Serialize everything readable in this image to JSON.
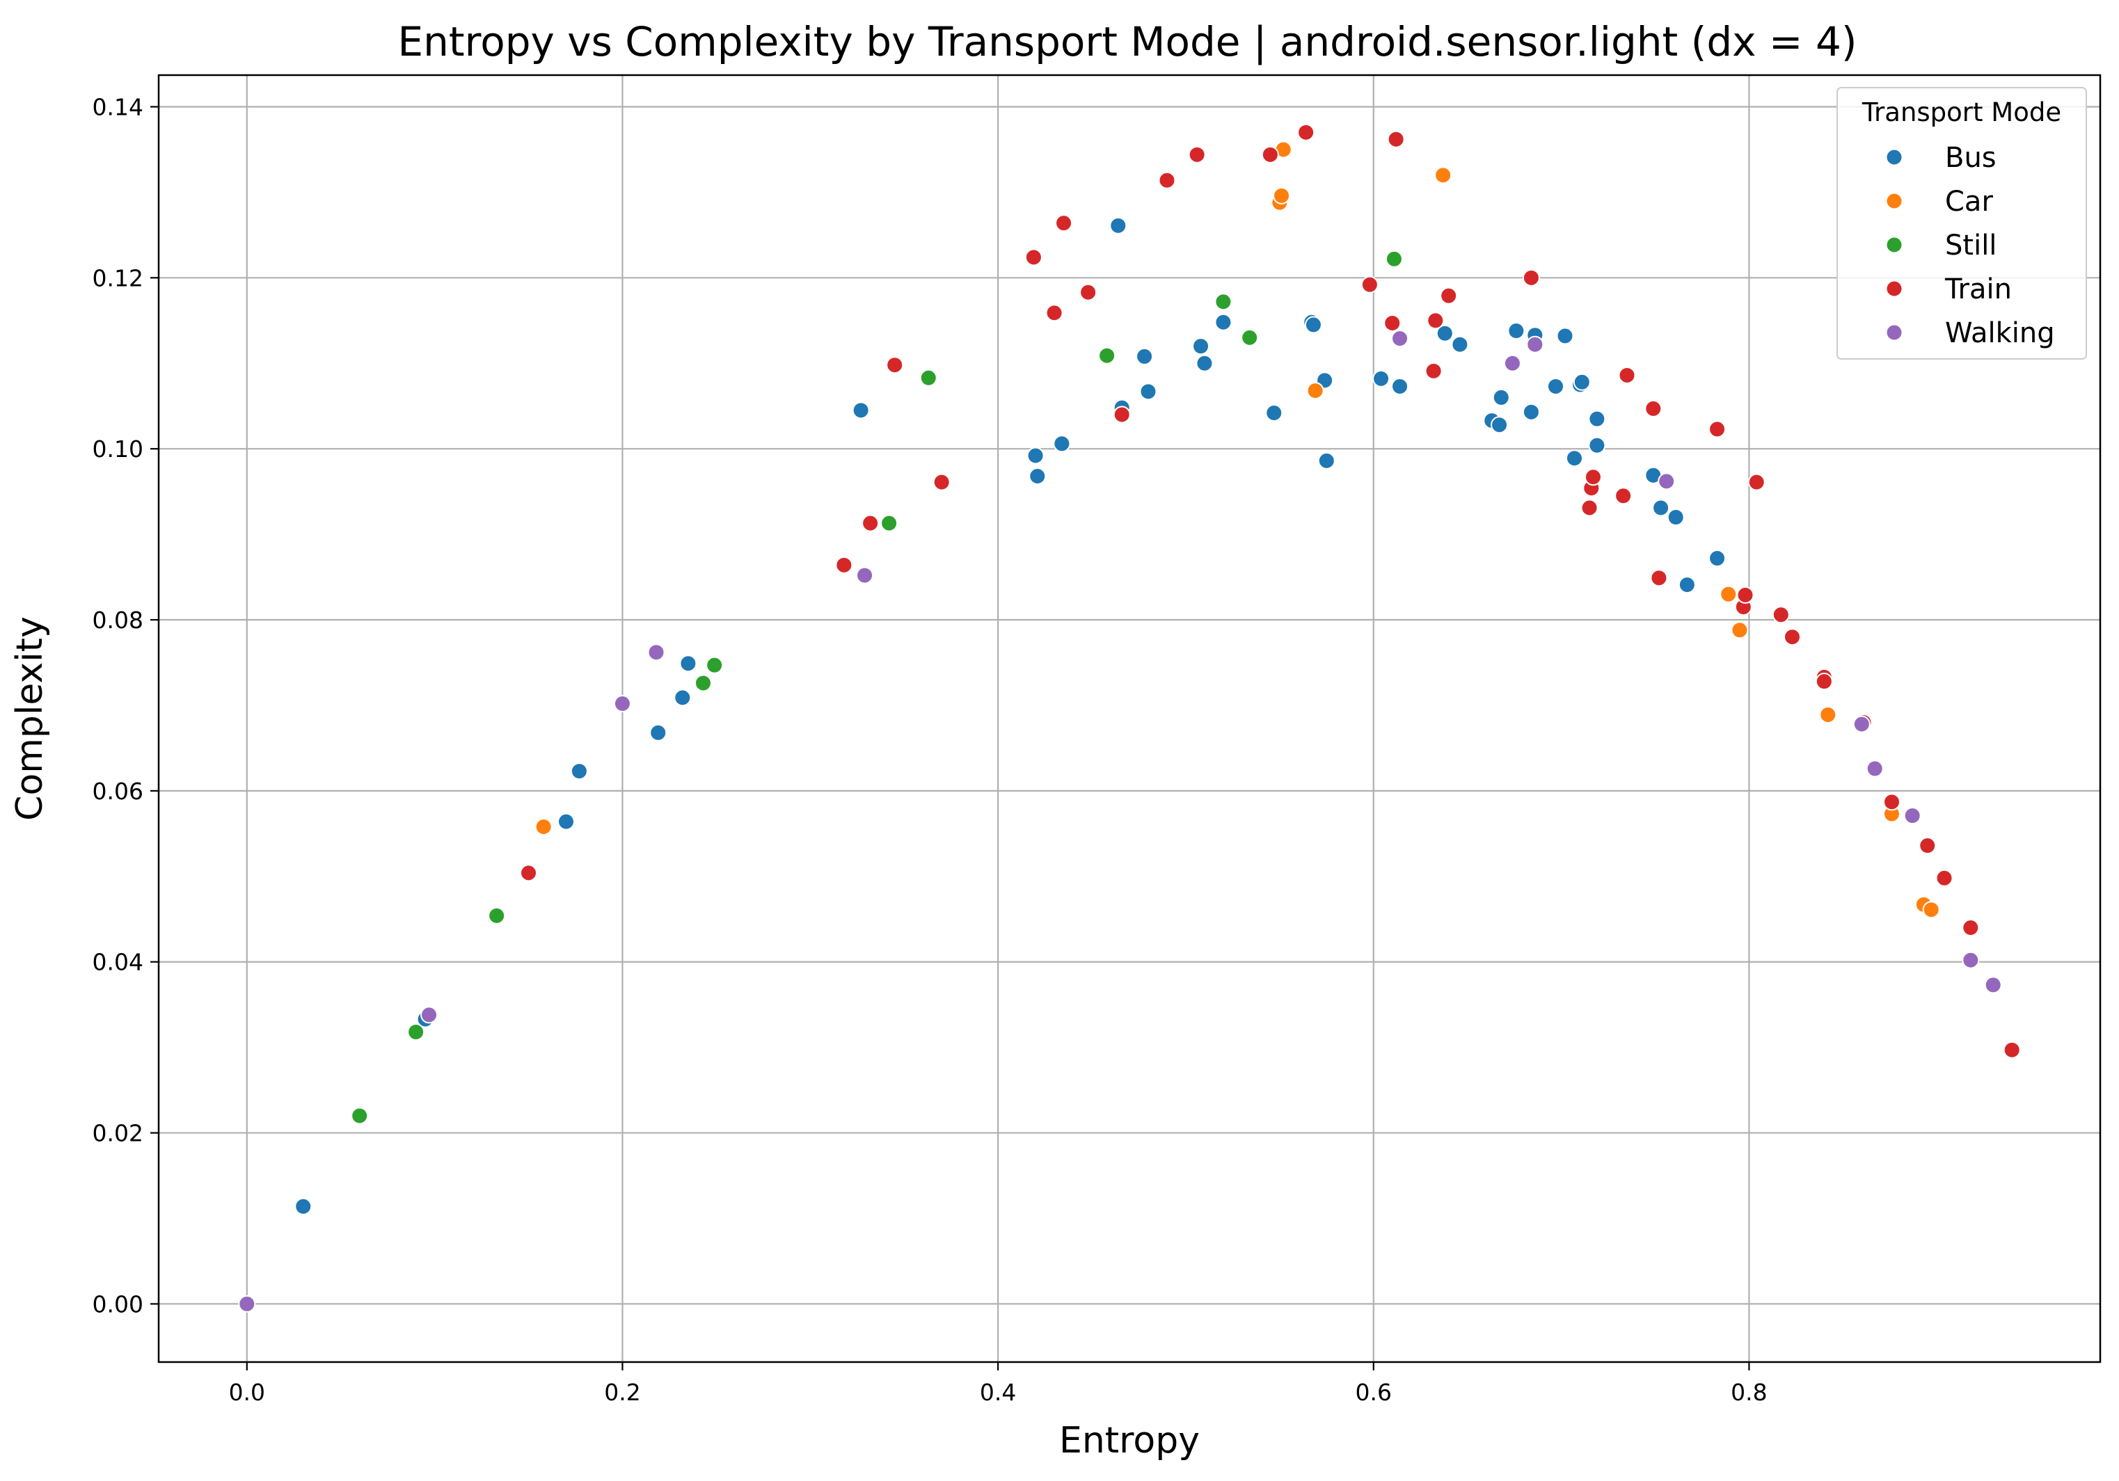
{
  "chart_data": {
    "type": "scatter",
    "title": "Entropy vs Complexity by Transport Mode | android.sensor.light (dx = 4)",
    "xlabel": "Entropy",
    "ylabel": "Complexity",
    "xlim": [
      -0.047,
      0.987
    ],
    "ylim": [
      -0.0068,
      0.1437
    ],
    "xticks": [
      "0.0",
      "0.2",
      "0.4",
      "0.6",
      "0.8"
    ],
    "xtick_values": [
      0.0,
      0.2,
      0.4,
      0.6,
      0.8
    ],
    "yticks": [
      "0.00",
      "0.02",
      "0.04",
      "0.06",
      "0.08",
      "0.10",
      "0.12",
      "0.14"
    ],
    "ytick_values": [
      0.0,
      0.02,
      0.04,
      0.06,
      0.08,
      0.1,
      0.12,
      0.14
    ],
    "grid": true,
    "legend": {
      "title": "Transport Mode",
      "placement": "top-right"
    },
    "series": [
      {
        "name": "Bus",
        "color": "#1f77b4",
        "points": [
          [
            0.03,
            0.0114
          ],
          [
            0.095,
            0.0333
          ],
          [
            0.17,
            0.0564
          ],
          [
            0.177,
            0.0623
          ],
          [
            0.219,
            0.0668
          ],
          [
            0.232,
            0.0709
          ],
          [
            0.235,
            0.0749
          ],
          [
            0.327,
            0.1045
          ],
          [
            0.42,
            0.0992
          ],
          [
            0.421,
            0.0968
          ],
          [
            0.434,
            0.1006
          ],
          [
            0.464,
            0.1261
          ],
          [
            0.466,
            0.1048
          ],
          [
            0.478,
            0.1108
          ],
          [
            0.48,
            0.1067
          ],
          [
            0.508,
            0.112
          ],
          [
            0.51,
            0.11
          ],
          [
            0.52,
            0.1148
          ],
          [
            0.547,
            0.1042
          ],
          [
            0.567,
            0.1148
          ],
          [
            0.568,
            0.1145
          ],
          [
            0.574,
            0.108
          ],
          [
            0.575,
            0.0986
          ],
          [
            0.604,
            0.1082
          ],
          [
            0.614,
            0.1073
          ],
          [
            0.638,
            0.1135
          ],
          [
            0.646,
            0.1122
          ],
          [
            0.663,
            0.1033
          ],
          [
            0.667,
            0.1028
          ],
          [
            0.668,
            0.106
          ],
          [
            0.676,
            0.1138
          ],
          [
            0.684,
            0.1043
          ],
          [
            0.686,
            0.1133
          ],
          [
            0.697,
            0.1073
          ],
          [
            0.702,
            0.1132
          ],
          [
            0.707,
            0.0989
          ],
          [
            0.71,
            0.1075
          ],
          [
            0.711,
            0.1078
          ],
          [
            0.719,
            0.1035
          ],
          [
            0.719,
            0.1004
          ],
          [
            0.749,
            0.0969
          ],
          [
            0.753,
            0.0931
          ],
          [
            0.761,
            0.092
          ],
          [
            0.767,
            0.0841
          ],
          [
            0.783,
            0.0872
          ]
        ]
      },
      {
        "name": "Car",
        "color": "#ff7f0e",
        "points": [
          [
            0.158,
            0.0558
          ],
          [
            0.55,
            0.1288
          ],
          [
            0.551,
            0.1296
          ],
          [
            0.552,
            0.135
          ],
          [
            0.569,
            0.1068
          ],
          [
            0.637,
            0.132
          ],
          [
            0.789,
            0.083
          ],
          [
            0.795,
            0.0788
          ],
          [
            0.842,
            0.0689
          ],
          [
            0.876,
            0.0573
          ],
          [
            0.893,
            0.0467
          ],
          [
            0.897,
            0.0461
          ]
        ]
      },
      {
        "name": "Still",
        "color": "#2ca02c",
        "points": [
          [
            0.06,
            0.022
          ],
          [
            0.09,
            0.0318
          ],
          [
            0.133,
            0.0454
          ],
          [
            0.243,
            0.0726
          ],
          [
            0.249,
            0.0747
          ],
          [
            0.342,
            0.0913
          ],
          [
            0.363,
            0.1083
          ],
          [
            0.458,
            0.1109
          ],
          [
            0.52,
            0.1172
          ],
          [
            0.534,
            0.113
          ],
          [
            0.611,
            0.1222
          ]
        ]
      },
      {
        "name": "Train",
        "color": "#d62728",
        "points": [
          [
            0.15,
            0.0504
          ],
          [
            0.318,
            0.0864
          ],
          [
            0.332,
            0.0913
          ],
          [
            0.345,
            0.1098
          ],
          [
            0.37,
            0.0961
          ],
          [
            0.419,
            0.1224
          ],
          [
            0.43,
            0.1159
          ],
          [
            0.435,
            0.1264
          ],
          [
            0.448,
            0.1183
          ],
          [
            0.466,
            0.104
          ],
          [
            0.49,
            0.1314
          ],
          [
            0.506,
            0.1344
          ],
          [
            0.545,
            0.1344
          ],
          [
            0.564,
            0.137
          ],
          [
            0.598,
            0.1192
          ],
          [
            0.61,
            0.1147
          ],
          [
            0.612,
            0.1362
          ],
          [
            0.632,
            0.1091
          ],
          [
            0.633,
            0.115
          ],
          [
            0.64,
            0.1179
          ],
          [
            0.684,
            0.12
          ],
          [
            0.715,
            0.0931
          ],
          [
            0.716,
            0.0954
          ],
          [
            0.717,
            0.0967
          ],
          [
            0.733,
            0.0945
          ],
          [
            0.735,
            0.1086
          ],
          [
            0.749,
            0.1047
          ],
          [
            0.752,
            0.0849
          ],
          [
            0.783,
            0.1023
          ],
          [
            0.797,
            0.0815
          ],
          [
            0.798,
            0.0829
          ],
          [
            0.804,
            0.0961
          ],
          [
            0.817,
            0.0806
          ],
          [
            0.823,
            0.078
          ],
          [
            0.84,
            0.0733
          ],
          [
            0.84,
            0.0728
          ],
          [
            0.861,
            0.068
          ],
          [
            0.876,
            0.0587
          ],
          [
            0.895,
            0.0536
          ],
          [
            0.904,
            0.0498
          ],
          [
            0.918,
            0.044
          ],
          [
            0.94,
            0.0297
          ]
        ]
      },
      {
        "name": "Walking",
        "color": "#9467bd",
        "points": [
          [
            0.0,
            0.0
          ],
          [
            0.097,
            0.0338
          ],
          [
            0.2,
            0.0702
          ],
          [
            0.218,
            0.0762
          ],
          [
            0.329,
            0.0852
          ],
          [
            0.614,
            0.1129
          ],
          [
            0.674,
            0.11
          ],
          [
            0.686,
            0.1122
          ],
          [
            0.756,
            0.0962
          ],
          [
            0.86,
            0.0678
          ],
          [
            0.867,
            0.0626
          ],
          [
            0.887,
            0.0571
          ],
          [
            0.918,
            0.0402
          ],
          [
            0.93,
            0.0373
          ]
        ]
      }
    ]
  }
}
